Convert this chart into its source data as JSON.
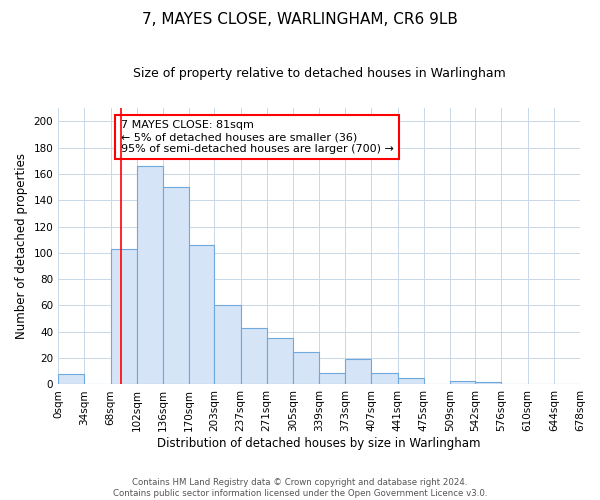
{
  "title": "7, MAYES CLOSE, WARLINGHAM, CR6 9LB",
  "subtitle": "Size of property relative to detached houses in Warlingham",
  "xlabel": "Distribution of detached houses by size in Warlingham",
  "ylabel": "Number of detached properties",
  "bin_edges": [
    0,
    34,
    68,
    102,
    136,
    170,
    203,
    237,
    271,
    305,
    339,
    373,
    407,
    441,
    475,
    509,
    542,
    576,
    610,
    644,
    678
  ],
  "bar_heights": [
    8,
    0,
    103,
    166,
    150,
    106,
    60,
    43,
    35,
    25,
    9,
    19,
    9,
    5,
    0,
    3,
    2,
    0,
    0,
    0
  ],
  "bar_color": "#d6e4f7",
  "bar_edgecolor": "#6fa8dc",
  "ylim": [
    0,
    210
  ],
  "yticks": [
    0,
    20,
    40,
    60,
    80,
    100,
    120,
    140,
    160,
    180,
    200
  ],
  "vline_x": 81,
  "vline_color": "#ff0000",
  "annotation_text": "7 MAYES CLOSE: 81sqm\n← 5% of detached houses are smaller (36)\n95% of semi-detached houses are larger (700) →",
  "title_fontsize": 11,
  "subtitle_fontsize": 9,
  "axis_label_fontsize": 8.5,
  "tick_fontsize": 7.5,
  "ann_fontsize": 8,
  "footer_text": "Contains HM Land Registry data © Crown copyright and database right 2024.\nContains public sector information licensed under the Open Government Licence v3.0.",
  "background_color": "#ffffff",
  "grid_color": "#c8d8e8"
}
